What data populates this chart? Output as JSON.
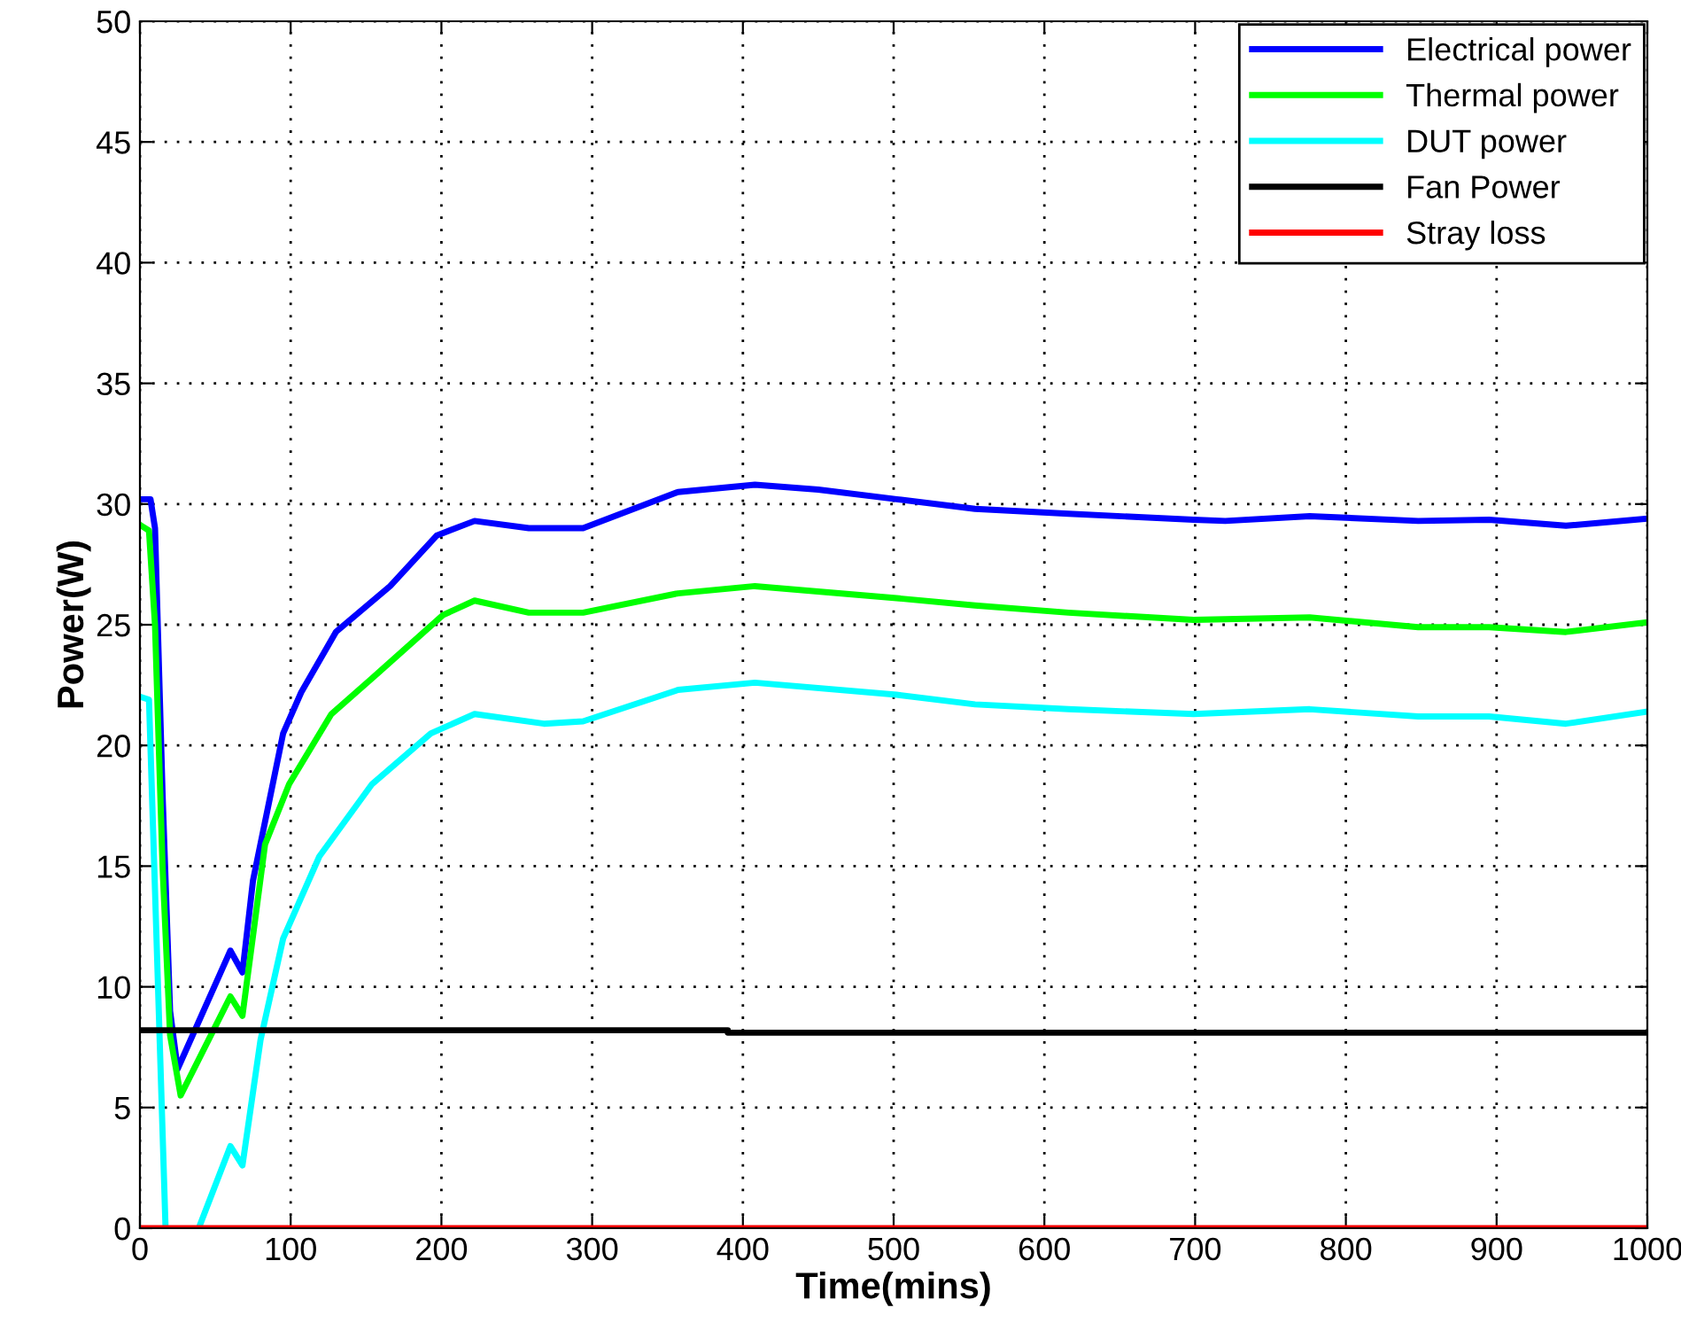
{
  "chart_data": {
    "type": "line",
    "xlabel": "Time(mins)",
    "ylabel": "Power(W)",
    "xlim": [
      0,
      1000
    ],
    "ylim": [
      0,
      50
    ],
    "xticks": [
      0,
      100,
      200,
      300,
      400,
      500,
      600,
      700,
      800,
      900,
      1000
    ],
    "yticks": [
      0,
      5,
      10,
      15,
      20,
      25,
      30,
      35,
      40,
      45,
      50
    ],
    "grid": true,
    "legend": "top right",
    "line_style": "solid",
    "marker": "none",
    "series": [
      {
        "name": "Electrical power",
        "color": "#0000ff",
        "x": [
          1,
          7,
          10,
          15,
          20,
          25,
          60,
          68,
          75,
          95,
          107,
          130,
          166,
          197,
          222,
          258,
          294,
          357,
          408,
          450,
          502,
          554,
          616,
          699,
          720,
          776,
          848,
          895,
          946,
          1000
        ],
        "values": [
          30.2,
          30.2,
          29,
          18,
          9,
          6.6,
          11.5,
          10.6,
          14.4,
          20.5,
          22.2,
          24.7,
          26.6,
          28.7,
          29.3,
          29.0,
          29.0,
          30.5,
          30.8,
          30.6,
          30.2,
          29.8,
          29.6,
          29.35,
          29.3,
          29.5,
          29.3,
          29.35,
          29.1,
          29.4
        ]
      },
      {
        "name": "Thermal power",
        "color": "#00ff00",
        "x": [
          1,
          6,
          10,
          15,
          20,
          27,
          60,
          68,
          83,
          99,
          127,
          158,
          201,
          222,
          258,
          294,
          357,
          408,
          502,
          554,
          616,
          699,
          776,
          848,
          895,
          946,
          1000
        ],
        "values": [
          29.1,
          28.9,
          25,
          15,
          8,
          5.5,
          9.6,
          8.8,
          15.9,
          18.4,
          21.3,
          23.0,
          25.4,
          26.0,
          25.5,
          25.5,
          26.3,
          26.6,
          26.1,
          25.8,
          25.5,
          25.2,
          25.3,
          24.9,
          24.9,
          24.7,
          25.1
        ]
      },
      {
        "name": "DUT power",
        "color": "#00ffff",
        "x": [
          1,
          6,
          10,
          17,
          25,
          39,
          60,
          68,
          80,
          95,
          119,
          154,
          193,
          222,
          268,
          294,
          357,
          408,
          502,
          554,
          616,
          699,
          776,
          848,
          895,
          946,
          1000
        ],
        "values": [
          22.0,
          21.9,
          14,
          0,
          null,
          0,
          3.4,
          2.6,
          7.8,
          12.0,
          15.4,
          18.4,
          20.5,
          21.3,
          20.9,
          21.0,
          22.3,
          22.6,
          22.1,
          21.7,
          21.5,
          21.3,
          21.5,
          21.2,
          21.2,
          20.9,
          21.4
        ]
      },
      {
        "name": "Fan Power",
        "color": "#000000",
        "x": [
          0,
          390,
          390,
          1000
        ],
        "values": [
          8.2,
          8.2,
          8.1,
          8.1
        ]
      },
      {
        "name": "Stray loss",
        "color": "#ff0000",
        "x": [
          0,
          1000
        ],
        "values": [
          0,
          0
        ]
      }
    ]
  }
}
